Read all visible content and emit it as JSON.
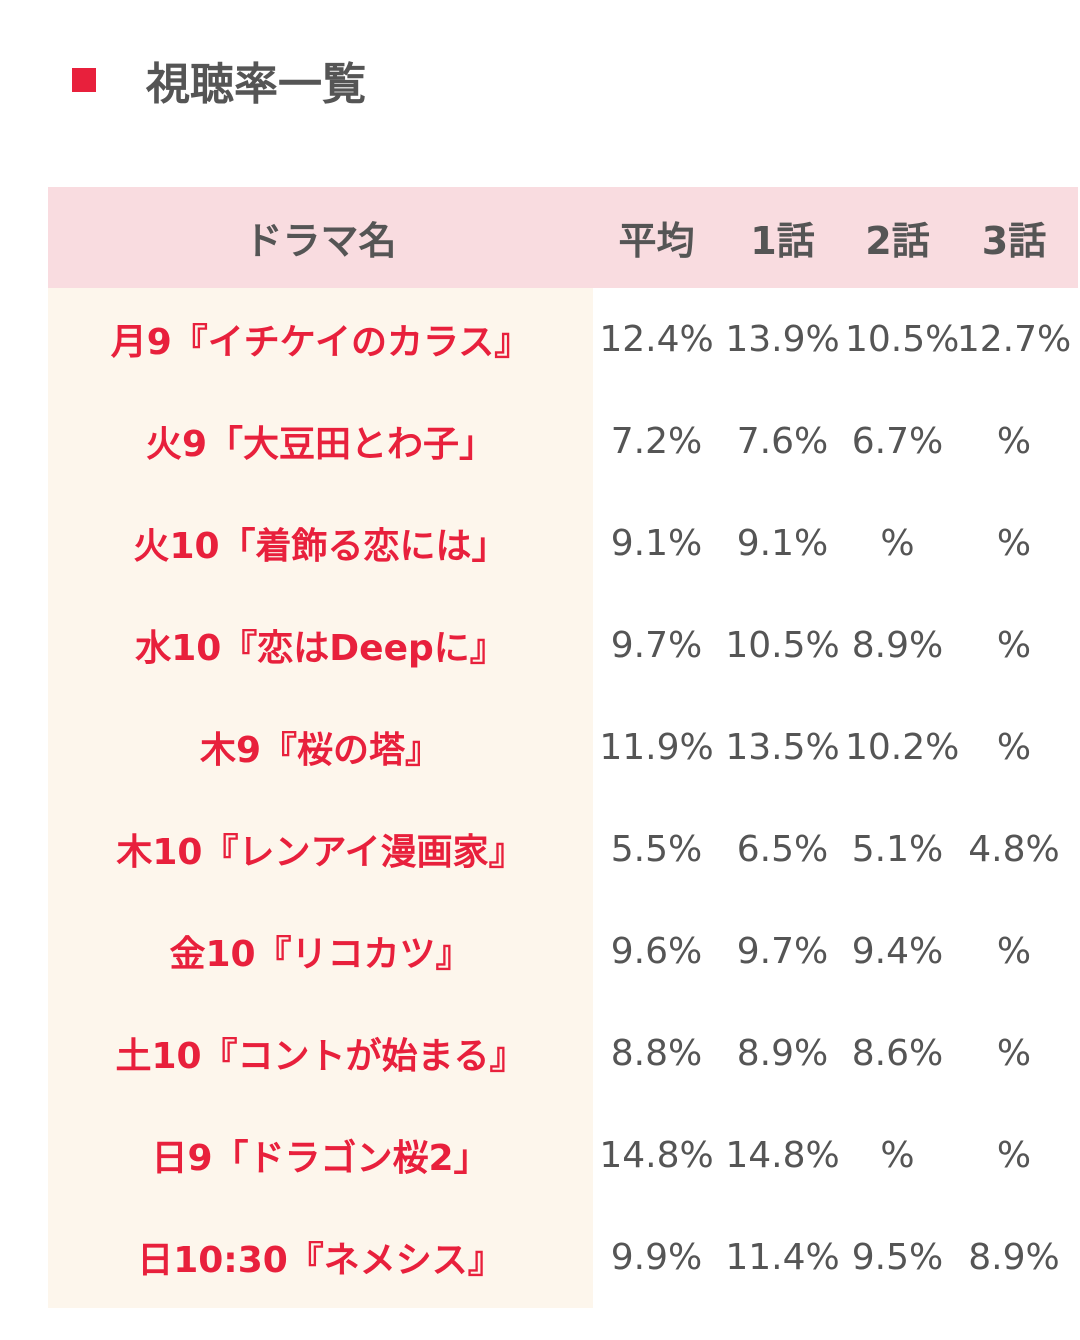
{
  "header": {
    "title": "視聴率一覧"
  },
  "table": {
    "columns": [
      "ドラマ名",
      "平均",
      "1話",
      "2話",
      "3話"
    ],
    "rows": [
      [
        "月9『イチケイのカラス』",
        "12.4%",
        "13.9%",
        "10.5%",
        "12.7%"
      ],
      [
        "火9「大豆田とわ子」",
        "7.2%",
        "7.6%",
        "6.7%",
        "%"
      ],
      [
        "火10「着飾る恋には」",
        "9.1%",
        "9.1%",
        "%",
        "%"
      ],
      [
        "水10『恋はDeepに』",
        "9.7%",
        "10.5%",
        "8.9%",
        "%"
      ],
      [
        "木9『桜の塔』",
        "11.9%",
        "13.5%",
        "10.2%",
        "%"
      ],
      [
        "木10『レンアイ漫画家』",
        "5.5%",
        "6.5%",
        "5.1%",
        "4.8%"
      ],
      [
        "金10『リコカツ』",
        "9.6%",
        "9.7%",
        "9.4%",
        "%"
      ],
      [
        "土10『コントが始まる』",
        "8.8%",
        "8.9%",
        "8.6%",
        "%"
      ],
      [
        "日9「ドラゴン桜2」",
        "14.8%",
        "14.8%",
        "%",
        "%"
      ],
      [
        "日10:30『ネメシス』",
        "9.9%",
        "11.4%",
        "9.5%",
        "8.9%"
      ]
    ]
  }
}
